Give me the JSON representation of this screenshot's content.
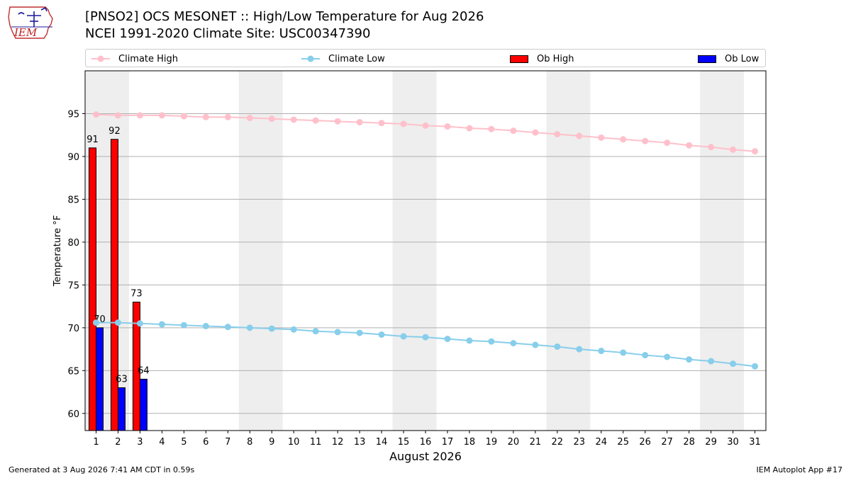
{
  "header": {
    "title_line1": "[PNSO2] OCS MESONET :: High/Low Temperature for Aug 2026",
    "title_line2": "NCEI 1991-2020 Climate Site: USC00347390"
  },
  "logo": {
    "text": "IEM"
  },
  "legend": {
    "climate_high": "Climate High",
    "climate_low": "Climate Low",
    "ob_high": "Ob High",
    "ob_low": "Ob Low"
  },
  "footer": {
    "generated": "Generated at 3 Aug 2026 7:41 AM CDT in 0.59s",
    "app": "IEM Autoplot App #17"
  },
  "colors": {
    "climate_high": "#ffc0cb",
    "climate_low": "#87ceeb",
    "ob_high": "#ff0000",
    "ob_low": "#0000ff",
    "weekend_band": "#eeeeee",
    "grid": "#b0b0b0"
  },
  "chart_data": {
    "type": "bar",
    "xlabel": "August 2026",
    "ylabel": "Temperature °F",
    "xlim": [
      0.5,
      31.5
    ],
    "ylim": [
      58,
      100
    ],
    "yticks": [
      60,
      65,
      70,
      75,
      80,
      85,
      90,
      95
    ],
    "x": [
      1,
      2,
      3,
      4,
      5,
      6,
      7,
      8,
      9,
      10,
      11,
      12,
      13,
      14,
      15,
      16,
      17,
      18,
      19,
      20,
      21,
      22,
      23,
      24,
      25,
      26,
      27,
      28,
      29,
      30,
      31
    ],
    "shaded_days": [
      [
        1,
        2
      ],
      [
        8,
        9
      ],
      [
        15,
        16
      ],
      [
        22,
        23
      ],
      [
        29,
        30
      ]
    ],
    "series": [
      {
        "name": "Climate High",
        "kind": "line",
        "values": [
          94.9,
          94.8,
          94.8,
          94.8,
          94.7,
          94.6,
          94.6,
          94.5,
          94.4,
          94.3,
          94.2,
          94.1,
          94.0,
          93.9,
          93.8,
          93.6,
          93.5,
          93.3,
          93.2,
          93.0,
          92.8,
          92.6,
          92.4,
          92.2,
          92.0,
          91.8,
          91.6,
          91.3,
          91.1,
          90.8,
          90.6
        ]
      },
      {
        "name": "Climate Low",
        "kind": "line",
        "values": [
          70.6,
          70.6,
          70.5,
          70.4,
          70.3,
          70.2,
          70.1,
          70.0,
          69.9,
          69.8,
          69.6,
          69.5,
          69.4,
          69.2,
          69.0,
          68.9,
          68.7,
          68.5,
          68.4,
          68.2,
          68.0,
          67.8,
          67.5,
          67.3,
          67.1,
          66.8,
          66.6,
          66.3,
          66.1,
          65.8,
          65.5
        ]
      },
      {
        "name": "Ob High",
        "kind": "bar",
        "x": [
          1,
          2,
          3
        ],
        "values": [
          91,
          92,
          73
        ],
        "labels": [
          "91",
          "92",
          "73"
        ]
      },
      {
        "name": "Ob Low",
        "kind": "bar",
        "x": [
          1,
          2,
          3
        ],
        "values": [
          70,
          63,
          64
        ],
        "labels": [
          "70",
          "63",
          "64"
        ]
      }
    ]
  }
}
